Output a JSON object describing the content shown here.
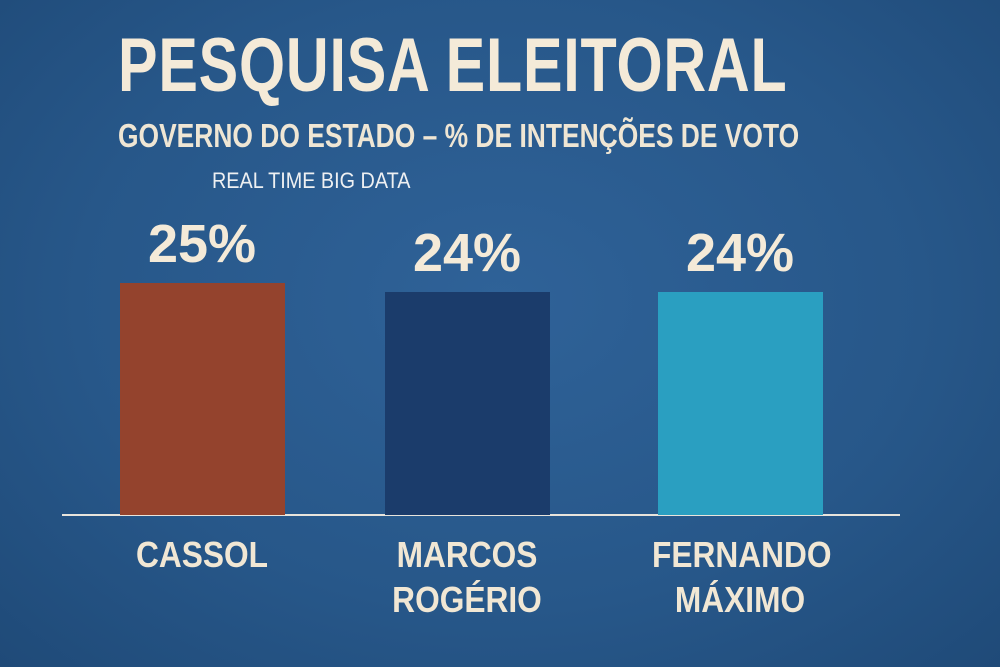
{
  "chart_data": {
    "type": "bar",
    "title": "PESQUISA ELEITORAL",
    "subtitle": "GOVERNO DO ESTADO – % DE INTENÇÕES DE VOTO",
    "source": "REAL TIME BIG DATA",
    "categories": [
      "CASSOL",
      "MARCOS ROGÉRIO",
      "FERNANDO MÁXIMO"
    ],
    "values": [
      25,
      24,
      24
    ],
    "value_labels": [
      "25%",
      "24%",
      "24%"
    ],
    "colors": [
      "#94432d",
      "#1b3c6b",
      "#2a9fc1"
    ]
  }
}
